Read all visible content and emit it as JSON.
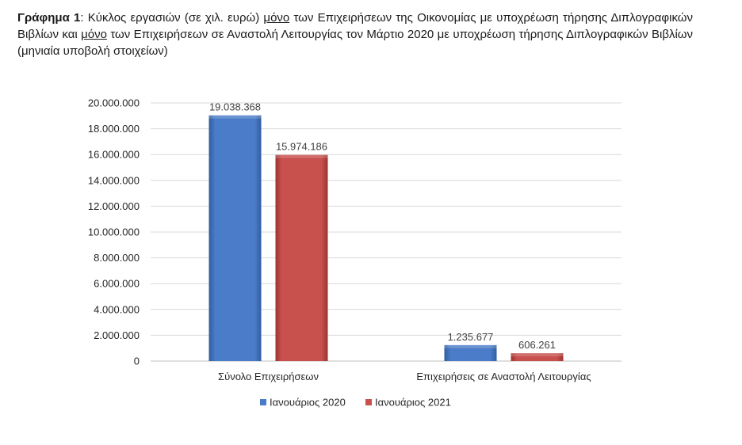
{
  "caption": {
    "label": "Γράφημα 1",
    "sep": ": ",
    "t1": "Κύκλος εργασιών (σε χιλ. ευρώ) ",
    "u1": "μόνο",
    "t2": " των Επιχειρήσεων της Οικονομίας με υποχρέωση τήρησης Διπλογραφικών Βιβλίων και ",
    "u2": "μόνο",
    "t3": " των Επιχειρήσεων σε Αναστολή Λειτουργίας τον Μάρτιο 2020 με υποχρέωση τήρησης Διπλογραφικών Βιβλίων  (μηνιαία υποβολή στοιχείων)"
  },
  "chart_data": {
    "type": "bar",
    "title": "",
    "xlabel": "",
    "ylabel": "",
    "categories": [
      "Σύνολο Επιχειρήσεων",
      "Επιχειρήσεις σε Αναστολή Λειτουργίας"
    ],
    "series": [
      {
        "name": "Ιανουάριος 2020",
        "color": "#4a7cc9",
        "values": [
          19038368,
          1235677
        ],
        "labels": [
          "19.038.368",
          "1.235.677"
        ]
      },
      {
        "name": "Ιανουάριος 2021",
        "color": "#c8504d",
        "values": [
          15974186,
          606261
        ],
        "labels": [
          "15.974.186",
          "606.261"
        ]
      }
    ],
    "ylim": [
      0,
      20000000
    ],
    "ytick_values": [
      0,
      2000000,
      4000000,
      6000000,
      8000000,
      10000000,
      12000000,
      14000000,
      16000000,
      18000000,
      20000000
    ],
    "ytick_labels": [
      "0",
      "2.000.000",
      "4.000.000",
      "6.000.000",
      "8.000.000",
      "10.000.000",
      "12.000.000",
      "14.000.000",
      "16.000.000",
      "18.000.000",
      "20.000.000"
    ],
    "grid": true,
    "legend_position": "bottom"
  }
}
